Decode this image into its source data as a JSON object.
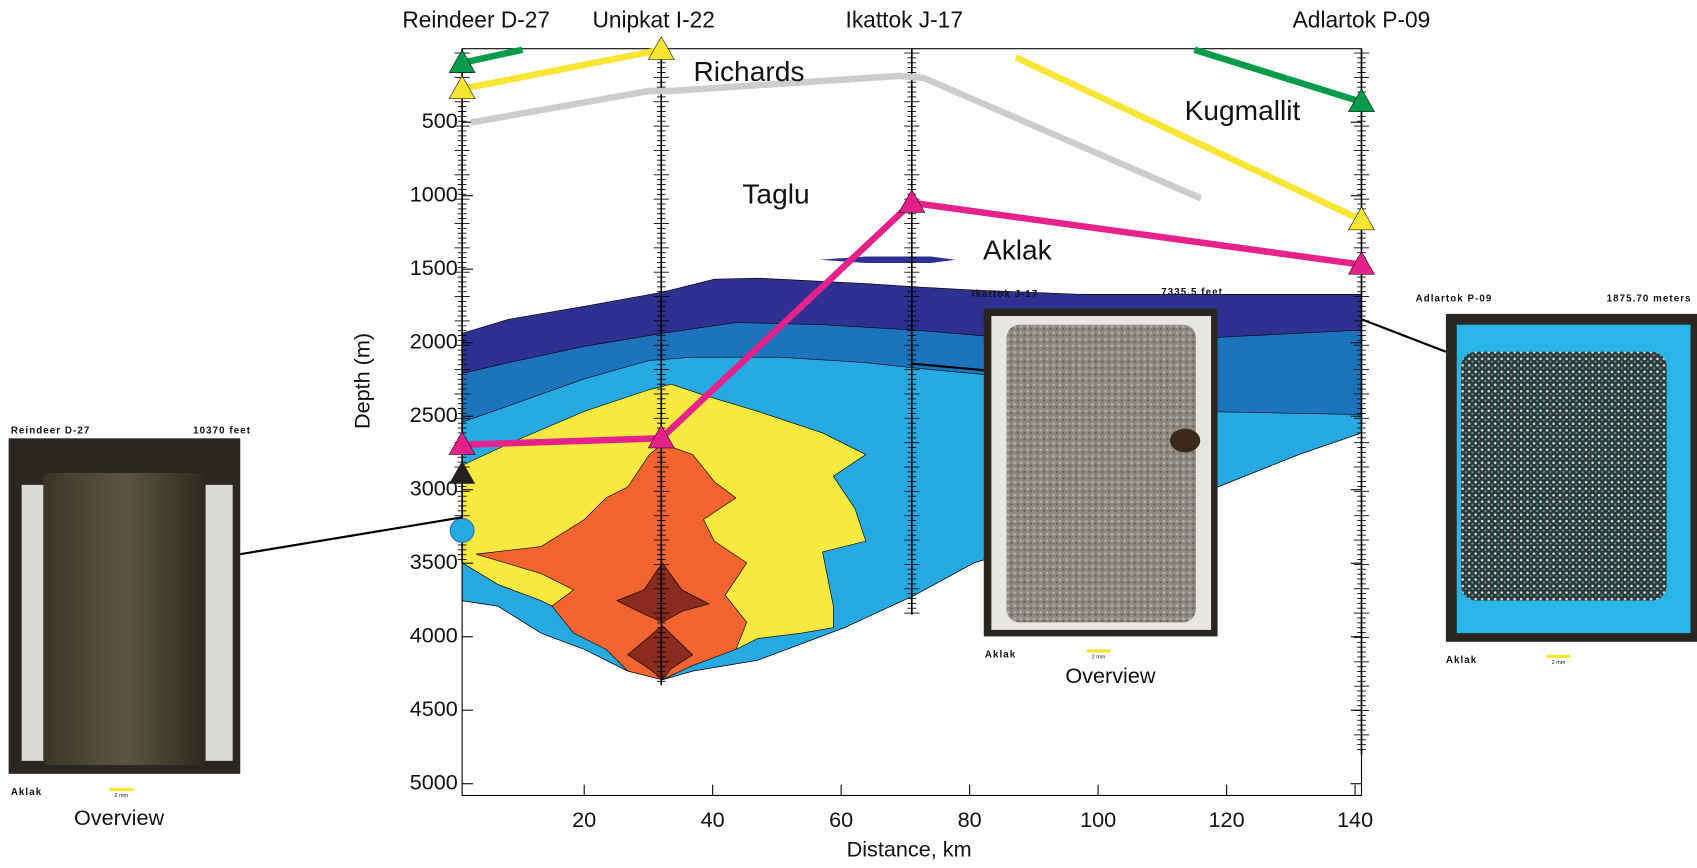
{
  "chart_data": {
    "type": "cross-section",
    "xlabel": "Distance, km",
    "ylabel": "Depth (m)",
    "xlim": [
      1,
      141
    ],
    "ylim": [
      0,
      5080
    ],
    "xticks": [
      20,
      40,
      60,
      80,
      100,
      120,
      140
    ],
    "yticks": [
      500,
      1000,
      1500,
      2000,
      2500,
      3000,
      3500,
      4000,
      4500,
      5000
    ],
    "wells": [
      {
        "name": "Reindeer D-27",
        "x": 1,
        "td": 3500
      },
      {
        "name": "Unipkat I-22",
        "x": 32,
        "td": 4330
      },
      {
        "name": "Ikattok J-17",
        "x": 71,
        "td": 3850
      },
      {
        "name": "Adlartok P-09",
        "x": 141,
        "td": 4800
      }
    ],
    "series": [
      {
        "color": "#cccccc",
        "x": [
          2.4,
          30,
          33.4,
          69,
          72.9,
          116
        ],
        "values": [
          502,
          288,
          288,
          185,
          199,
          1018
        ]
      },
      {
        "color": "#009c49",
        "x": [
          1,
          10.4,
          null,
          115,
          141
        ],
        "values": [
          96,
          7,
          null,
          7,
          362
        ]
      },
      {
        "color": "#f7e531",
        "x": [
          1,
          32,
          null,
          87.2,
          141
        ],
        "values": [
          273,
          7,
          null,
          59,
          1166
        ]
      },
      {
        "color": "#e5218b",
        "x": [
          1,
          32,
          71,
          141
        ],
        "values": [
          2694,
          2650,
          1048,
          1469
        ]
      }
    ],
    "points": [
      {
        "color": "#231f20",
        "shape": "triangle",
        "x": 1,
        "value": 2893
      },
      {
        "color": "#27aae1",
        "shape": "circle",
        "x": 1,
        "value": 3277
      }
    ],
    "formations": [
      "Richards",
      "Kugmallit",
      "Taglu",
      "Aklak"
    ],
    "insets": [
      {
        "well": "Reindeer D-27",
        "depth": "10370 feet",
        "formation": "Aklak",
        "scale": "2 mm",
        "caption": "Overview"
      },
      {
        "well": "Ikattok J-17",
        "depth": "7335.5 feet",
        "formation": "Aklak",
        "scale": "2 mm",
        "caption": "Overview"
      },
      {
        "well": "Adlartok P-09",
        "depth": "1875.70 meters",
        "formation": "Aklak",
        "scale": "2 mm"
      }
    ]
  }
}
